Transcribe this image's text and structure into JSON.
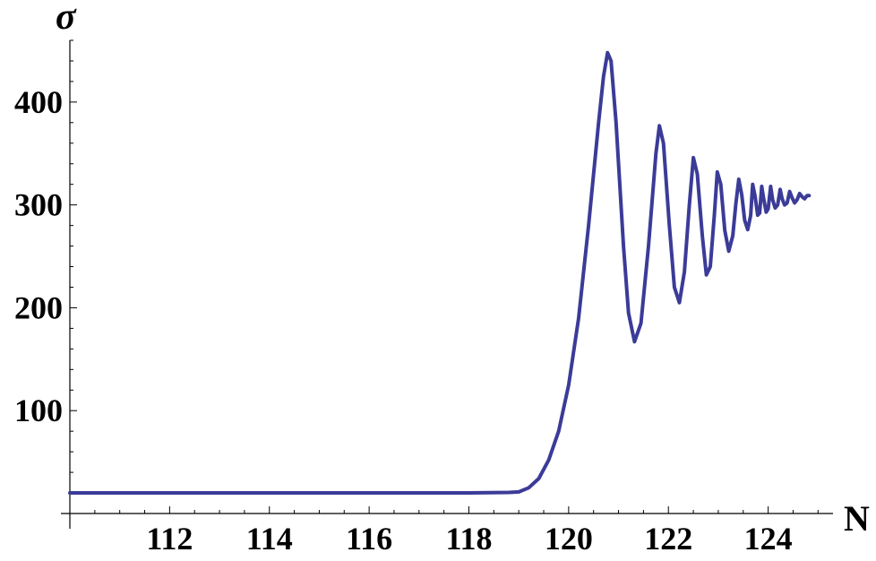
{
  "chart_data": {
    "type": "line",
    "xlabel": "N",
    "ylabel": "σ",
    "xlim": [
      110.0,
      125.3
    ],
    "ylim": [
      0,
      460
    ],
    "x_ticks": [
      112,
      114,
      116,
      118,
      120,
      122,
      124
    ],
    "x_tick_labels": [
      "112",
      "114",
      "116",
      "118",
      "120",
      "122",
      "124"
    ],
    "y_ticks": [
      100,
      200,
      300,
      400
    ],
    "y_tick_labels": [
      "100",
      "200",
      "300",
      "400"
    ],
    "grid": false,
    "series": [
      {
        "color": "#3b3b98",
        "points": [
          [
            110.0,
            20
          ],
          [
            114.0,
            20
          ],
          [
            118.0,
            20
          ],
          [
            118.8,
            20.5
          ],
          [
            119.0,
            21
          ],
          [
            119.2,
            25
          ],
          [
            119.4,
            34
          ],
          [
            119.6,
            52
          ],
          [
            119.8,
            80
          ],
          [
            120.0,
            125
          ],
          [
            120.2,
            190
          ],
          [
            120.4,
            280
          ],
          [
            120.6,
            380
          ],
          [
            120.7,
            425
          ],
          [
            120.78,
            448
          ],
          [
            120.85,
            440
          ],
          [
            120.95,
            380
          ],
          [
            121.1,
            260
          ],
          [
            121.2,
            195
          ],
          [
            121.32,
            167
          ],
          [
            121.45,
            185
          ],
          [
            121.6,
            260
          ],
          [
            121.75,
            350
          ],
          [
            121.82,
            377
          ],
          [
            121.9,
            360
          ],
          [
            122.02,
            280
          ],
          [
            122.12,
            220
          ],
          [
            122.22,
            205
          ],
          [
            122.32,
            235
          ],
          [
            122.42,
            300
          ],
          [
            122.5,
            346
          ],
          [
            122.58,
            330
          ],
          [
            122.68,
            270
          ],
          [
            122.76,
            232
          ],
          [
            122.84,
            240
          ],
          [
            122.92,
            290
          ],
          [
            122.98,
            332
          ],
          [
            123.05,
            320
          ],
          [
            123.13,
            275
          ],
          [
            123.21,
            255
          ],
          [
            123.29,
            270
          ],
          [
            123.35,
            300
          ],
          [
            123.41,
            325
          ],
          [
            123.47,
            310
          ],
          [
            123.53,
            285
          ],
          [
            123.59,
            276
          ],
          [
            123.65,
            290
          ],
          [
            123.69,
            320
          ],
          [
            123.74,
            308
          ],
          [
            123.79,
            290
          ],
          [
            123.83,
            292
          ],
          [
            123.87,
            318
          ],
          [
            123.91,
            306
          ],
          [
            123.96,
            293
          ],
          [
            124.0,
            296
          ],
          [
            124.05,
            318
          ],
          [
            124.09,
            305
          ],
          [
            124.14,
            297
          ],
          [
            124.19,
            300
          ],
          [
            124.24,
            315
          ],
          [
            124.28,
            306
          ],
          [
            124.33,
            300
          ],
          [
            124.38,
            302
          ],
          [
            124.43,
            313
          ],
          [
            124.48,
            307
          ],
          [
            124.53,
            302
          ],
          [
            124.58,
            305
          ],
          [
            124.63,
            311
          ],
          [
            124.68,
            308
          ],
          [
            124.73,
            306
          ],
          [
            124.78,
            309
          ],
          [
            124.82,
            309
          ]
        ]
      }
    ]
  }
}
